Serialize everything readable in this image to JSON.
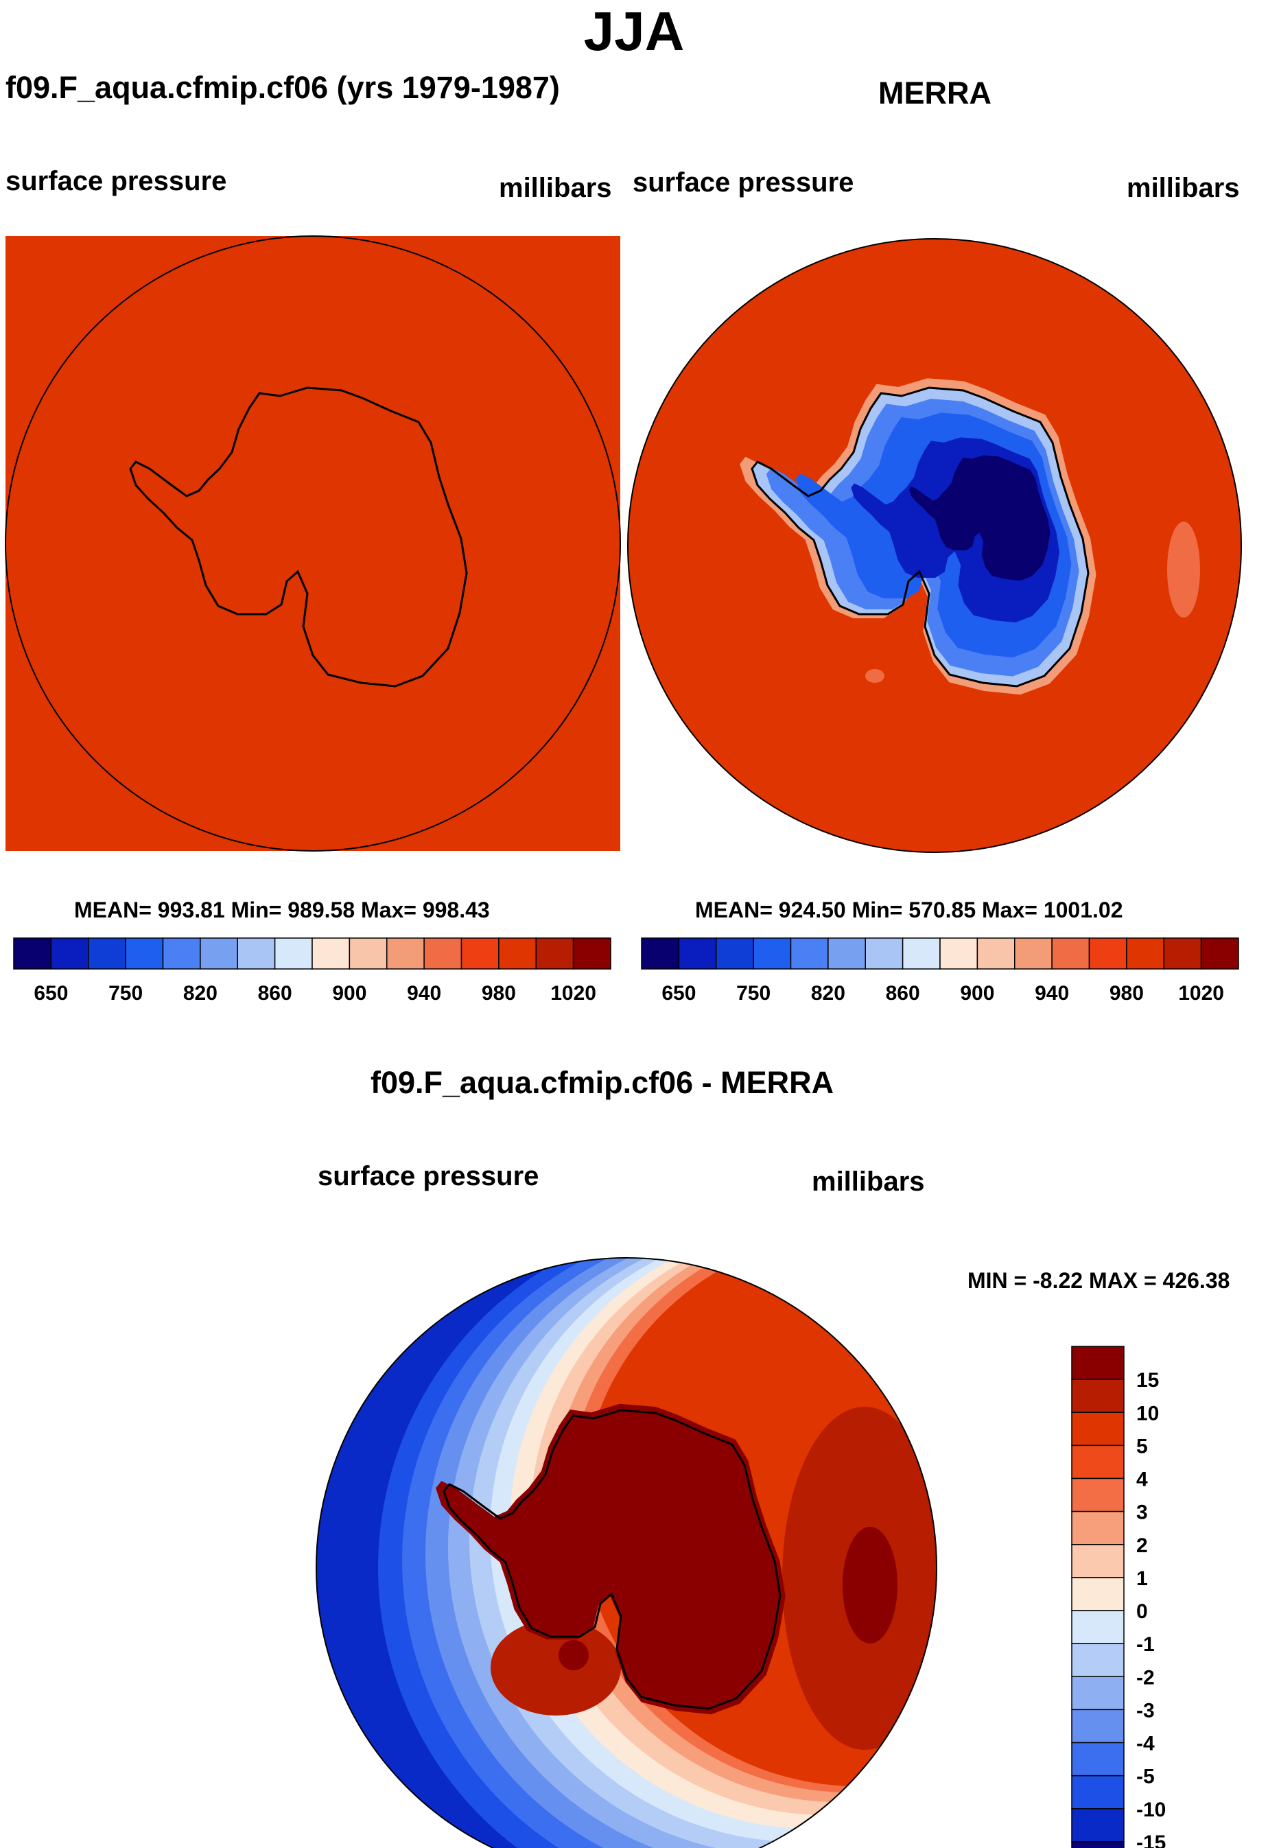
{
  "title": "JJA",
  "chart_data": [
    {
      "type": "heatmap",
      "title": "f09.F_aqua.cfmip.cf06 (yrs 1979-1987)",
      "variable": "surface pressure",
      "units": "millibars",
      "projection": "south polar stereographic",
      "stats": {
        "mean": 993.81,
        "min": 989.58,
        "max": 998.43,
        "text": "MEAN= 993.81  Min= 989.58  Max= 998.43"
      },
      "levels": [
        650,
        700,
        750,
        800,
        820,
        840,
        860,
        880,
        900,
        920,
        940,
        960,
        980,
        1000,
        1020
      ],
      "tick_labels": [
        "650",
        "750",
        "820",
        "860",
        "900",
        "940",
        "980",
        "1020"
      ],
      "colors": [
        "#08006e",
        "#0a1dbe",
        "#0e3ed6",
        "#1f5ff0",
        "#4a80f4",
        "#78a0f0",
        "#a9c5f6",
        "#d8e8fb",
        "#fde6d6",
        "#f8c5aa",
        "#f39c78",
        "#f06c44",
        "#ee3f12",
        "#df3500",
        "#b71d00",
        "#8a0000"
      ],
      "field_value_all_ocean": 994
    },
    {
      "type": "heatmap",
      "title": "MERRA",
      "variable": "surface pressure",
      "units": "millibars",
      "projection": "south polar stereographic",
      "stats": {
        "mean": 924.5,
        "min": 570.85,
        "max": 1001.02,
        "text": "MEAN= 924.50  Min= 570.85  Max= 1001.02"
      },
      "levels": [
        650,
        700,
        750,
        800,
        820,
        840,
        860,
        880,
        900,
        920,
        940,
        960,
        980,
        1000,
        1020
      ],
      "tick_labels": [
        "650",
        "750",
        "820",
        "860",
        "900",
        "940",
        "980",
        "1020"
      ],
      "colors": [
        "#08006e",
        "#0a1dbe",
        "#0e3ed6",
        "#1f5ff0",
        "#4a80f4",
        "#78a0f0",
        "#a9c5f6",
        "#d8e8fb",
        "#fde6d6",
        "#f8c5aa",
        "#f39c78",
        "#f06c44",
        "#ee3f12",
        "#df3500",
        "#b71d00",
        "#8a0000"
      ]
    },
    {
      "type": "heatmap",
      "title": "f09.F_aqua.cfmip.cf06 - MERRA",
      "variable": "surface pressure",
      "units": "millibars",
      "projection": "south polar stereographic",
      "stats": {
        "min": -8.22,
        "max": 426.38,
        "text": "MIN =  -8.22 MAX = 426.38"
      },
      "levels": [
        -15,
        -10,
        -5,
        -4,
        -3,
        -2,
        -1,
        0,
        1,
        2,
        3,
        4,
        5,
        10,
        15
      ],
      "tick_labels": [
        "15",
        "10",
        "5",
        "4",
        "3",
        "2",
        "1",
        "0",
        "-1",
        "-2",
        "-3",
        "-4",
        "-5",
        "-10",
        "-15"
      ],
      "colors": [
        "#8a0000",
        "#b71d00",
        "#df3500",
        "#ee4a1a",
        "#f36d45",
        "#f79e7b",
        "#fbc9ad",
        "#fde9d8",
        "#d8e8fb",
        "#b3cdf6",
        "#8eb0f3",
        "#6690f0",
        "#3c6ef0",
        "#1c50e6",
        "#0a2ac8",
        "#08007a"
      ]
    }
  ]
}
